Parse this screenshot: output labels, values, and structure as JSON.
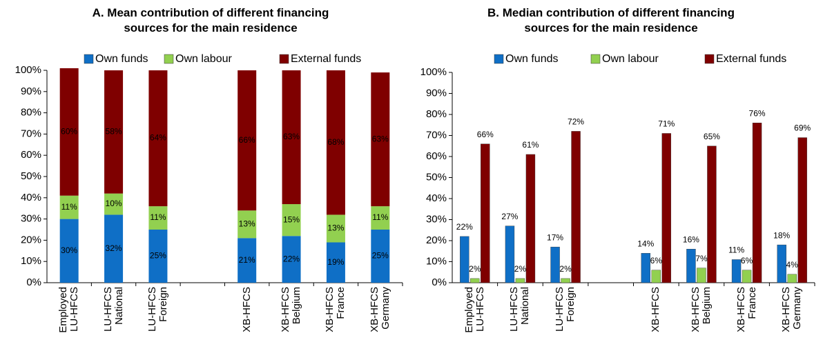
{
  "chart_data": [
    {
      "type": "bar",
      "stacked": true,
      "title": "A. Mean contribution of different financing\nsources for the main residence",
      "categories": [
        "Employed\nLU-HFCS",
        "LU-HFCS\nNational",
        "LU-HFCS\nForeign",
        null,
        "XB-HFCS",
        "XB-HFCS\nBelgium",
        "XB-HFCS\nFrance",
        "XB-HFCS\nGermany"
      ],
      "series": [
        {
          "name": "Own funds",
          "color": "#0f6fc6",
          "values": [
            30,
            32,
            25,
            null,
            21,
            22,
            19,
            25
          ],
          "value_labels": [
            "30%",
            "32%",
            "25%",
            null,
            "21%",
            "22%",
            "19%",
            "25%"
          ]
        },
        {
          "name": "Own labour",
          "color": "#92d050",
          "values": [
            11,
            10,
            11,
            null,
            13,
            15,
            13,
            11
          ],
          "value_labels": [
            "11%",
            "10%",
            "11%",
            null,
            "13%",
            "15%",
            "13%",
            "11%"
          ]
        },
        {
          "name": "External funds",
          "color": "#7f0000",
          "values": [
            60,
            58,
            64,
            null,
            66,
            63,
            68,
            63
          ],
          "value_labels": [
            "60%",
            "58%",
            "64%",
            null,
            "66%",
            "63%",
            "68%",
            "63%"
          ]
        }
      ],
      "ylim": [
        0,
        100
      ],
      "yticks": [
        {
          "value": 0,
          "label": "0%"
        },
        {
          "value": 10,
          "label": "10%"
        },
        {
          "value": 20,
          "label": "20%"
        },
        {
          "value": 30,
          "label": "30%"
        },
        {
          "value": 40,
          "label": "40%"
        },
        {
          "value": 50,
          "label": "50%"
        },
        {
          "value": 60,
          "label": "60%"
        },
        {
          "value": 70,
          "label": "70%"
        },
        {
          "value": 80,
          "label": "80%"
        },
        {
          "value": 90,
          "label": "90%"
        },
        {
          "value": 100,
          "label": "100%"
        }
      ],
      "legend": "top"
    },
    {
      "type": "bar",
      "stacked": false,
      "title": "B. Median contribution of different financing\nsources for the main residence",
      "categories": [
        "Employed\nLU-HFCS",
        "LU-HFCS\nNational",
        "LU-HFCS\nForeign",
        null,
        "XB-HFCS",
        "XB-HFCS\nBelgium",
        "XB-HFCS\nFrance",
        "XB-HFCS\nGermany"
      ],
      "series": [
        {
          "name": "Own funds",
          "color": "#0f6fc6",
          "values": [
            22,
            27,
            17,
            null,
            14,
            16,
            11,
            18
          ],
          "value_labels": [
            "22%",
            "27%",
            "17%",
            null,
            "14%",
            "16%",
            "11%",
            "18%"
          ]
        },
        {
          "name": "Own labour",
          "color": "#92d050",
          "values": [
            2,
            2,
            2,
            null,
            6,
            7,
            6,
            4
          ],
          "value_labels": [
            "2%",
            "2%",
            "2%",
            null,
            "6%",
            "7%",
            "6%",
            "4%"
          ]
        },
        {
          "name": "External funds",
          "color": "#7f0000",
          "values": [
            66,
            61,
            72,
            null,
            71,
            65,
            76,
            69
          ],
          "value_labels": [
            "66%",
            "61%",
            "72%",
            null,
            "71%",
            "65%",
            "76%",
            "69%"
          ]
        }
      ],
      "ylim": [
        0,
        100
      ],
      "yticks": [
        {
          "value": 0,
          "label": "0%"
        },
        {
          "value": 10,
          "label": "10%"
        },
        {
          "value": 20,
          "label": "20%"
        },
        {
          "value": 30,
          "label": "30%"
        },
        {
          "value": 40,
          "label": "40%"
        },
        {
          "value": 50,
          "label": "50%"
        },
        {
          "value": 60,
          "label": "60%"
        },
        {
          "value": 70,
          "label": "70%"
        },
        {
          "value": 80,
          "label": "80%"
        },
        {
          "value": 90,
          "label": "90%"
        },
        {
          "value": 100,
          "label": "100%"
        }
      ],
      "legend": "top"
    }
  ]
}
